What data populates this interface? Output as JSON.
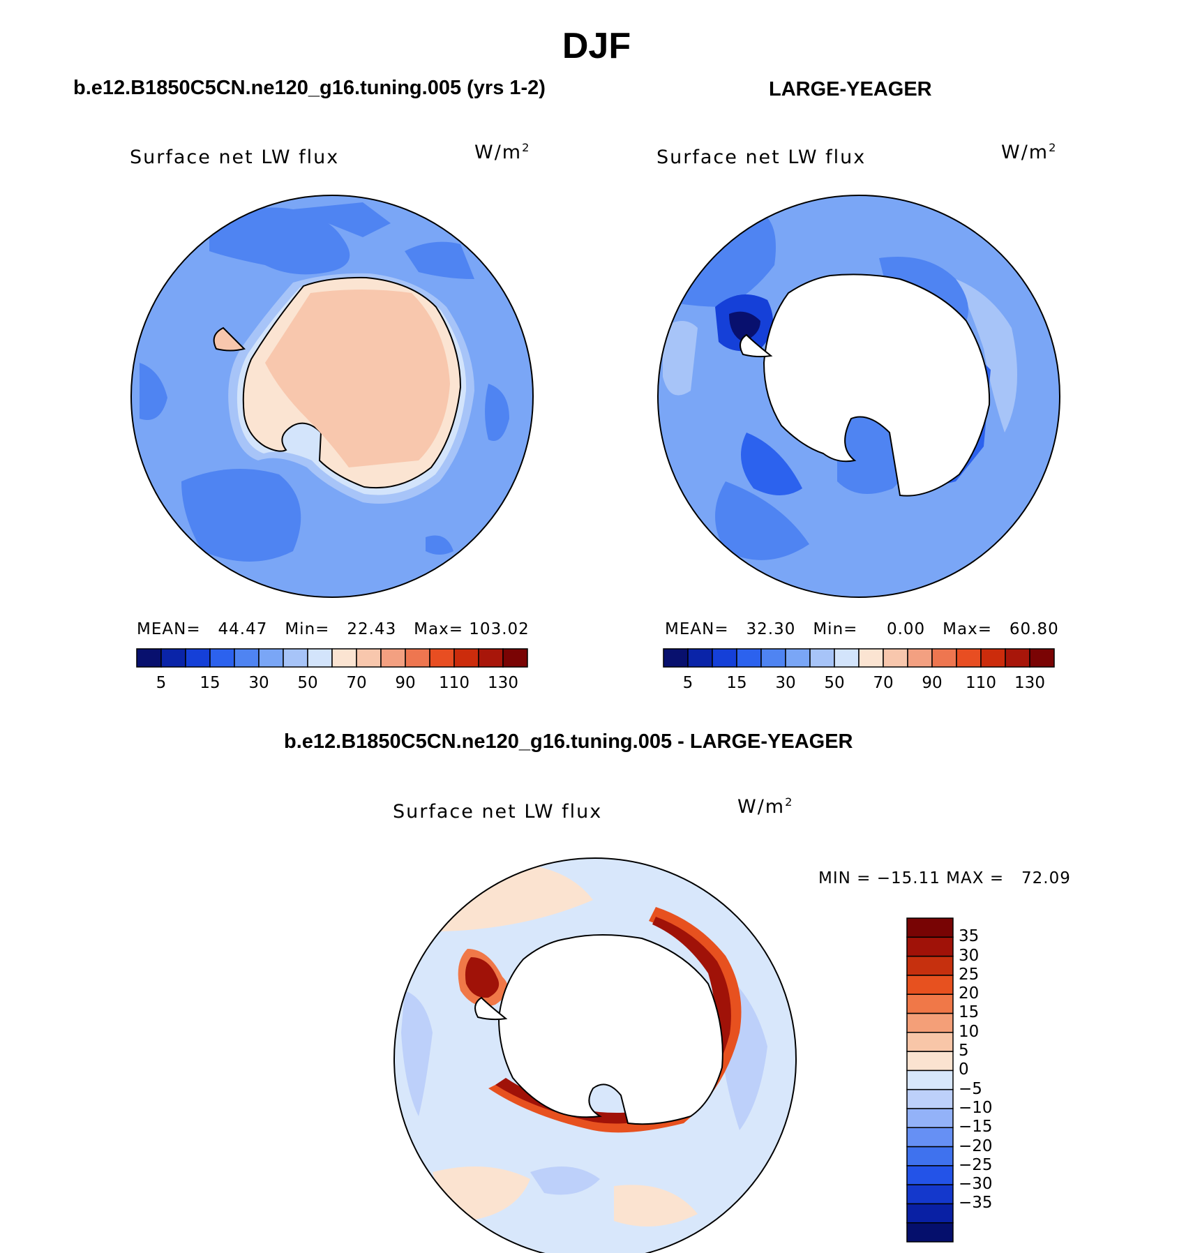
{
  "figure": {
    "title": "DJF",
    "variable": "Surface net LW flux",
    "units_base": "W/m",
    "units_exp": "2"
  },
  "colors": {
    "model_scale": [
      "#08106e",
      "#0a24a8",
      "#1540d8",
      "#2c62ee",
      "#4f84f2",
      "#7aa6f6",
      "#a7c4f8",
      "#d3e4fb",
      "#fbe4d2",
      "#f8c7ad",
      "#f3a081",
      "#ee7650",
      "#e84e22",
      "#cc2c0c",
      "#a8160a",
      "#7a0404"
    ],
    "diff_scale": [
      "#050f6c",
      "#0920a4",
      "#1438cc",
      "#2353e8",
      "#3f72ee",
      "#6690f4",
      "#93b2f8",
      "#bdd0fa",
      "#d8e7fb",
      "#fbe3d0",
      "#f8c6a8",
      "#f49f78",
      "#f07848",
      "#e7511f",
      "#c6300e",
      "#a01208",
      "#780404"
    ]
  },
  "chart_data": [
    {
      "type": "heatmap",
      "title": "b.e12.B1850C5CN.ne120_g16.tuning.005 (yrs 1-2)",
      "variable": "Surface net LW flux",
      "units": "W/m2",
      "projection": "polar-stereographic-south",
      "stats": {
        "mean_label": "MEAN=",
        "mean": "44.47",
        "min_label": "Min=",
        "min": "22.43",
        "max_label": "Max=",
        "max": "103.02"
      },
      "colorbar": {
        "orientation": "horizontal",
        "levels": [
          "5",
          "15",
          "30",
          "50",
          "70",
          "90",
          "110",
          "130"
        ]
      }
    },
    {
      "type": "heatmap",
      "title": "LARGE-YEAGER",
      "variable": "Surface net LW flux",
      "units": "W/m2",
      "projection": "polar-stereographic-south",
      "stats": {
        "mean_label": "MEAN=",
        "mean": "32.30",
        "min_label": "Min=",
        "min": "0.00",
        "max_label": "Max=",
        "max": "60.80"
      },
      "colorbar": {
        "orientation": "horizontal",
        "levels": [
          "5",
          "15",
          "30",
          "50",
          "70",
          "90",
          "110",
          "130"
        ]
      }
    },
    {
      "type": "heatmap",
      "title": "b.e12.B1850C5CN.ne120_g16.tuning.005 - LARGE-YEAGER",
      "variable": "Surface net LW flux",
      "units": "W/m2",
      "projection": "polar-stereographic-south",
      "stats": {
        "min_label": "MIN =",
        "min": "−15.11",
        "max_label": "MAX =",
        "max": "72.09"
      },
      "colorbar": {
        "orientation": "vertical",
        "levels": [
          "35",
          "30",
          "25",
          "20",
          "15",
          "10",
          "5",
          "0",
          "−5",
          "−10",
          "−15",
          "−20",
          "−25",
          "−30",
          "−35"
        ]
      }
    }
  ]
}
